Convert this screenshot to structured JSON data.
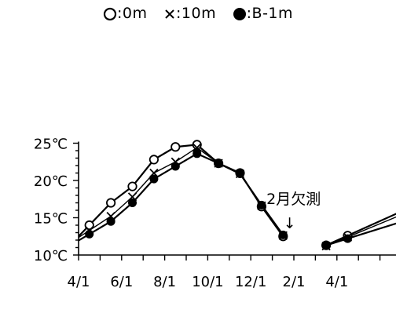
{
  "chart_data": {
    "type": "line",
    "title": "",
    "xlabel": "",
    "ylabel": "",
    "x_tick_labels": [
      "4/1",
      "6/1",
      "8/1",
      "10/1",
      "12/1",
      "2/1",
      "4/1"
    ],
    "y_tick_labels": [
      "10℃",
      "15℃",
      "20℃",
      "25℃"
    ],
    "ylim": [
      10,
      25
    ],
    "grid": false,
    "legend": {
      "placement": "top",
      "entries": [
        {
          "marker": "open-circle",
          "label": ":0m"
        },
        {
          "marker": "cross",
          "label": ":10m"
        },
        {
          "marker": "filled-circle",
          "label": ":B-1m"
        }
      ]
    },
    "annotation": {
      "text": "2月欠測",
      "arrow": "↓",
      "month_index": 10.5
    },
    "series": [
      {
        "name": ":0m",
        "marker": "open-circle",
        "segments": [
          [
            [
              0,
              14.0
            ],
            [
              1,
              17.0
            ],
            [
              2,
              19.2
            ],
            [
              3,
              22.8
            ],
            [
              4,
              24.5
            ],
            [
              5,
              24.8
            ],
            [
              6,
              22.3
            ],
            [
              7,
              21.0
            ],
            [
              8,
              16.5
            ],
            [
              9,
              12.5
            ]
          ],
          [
            [
              11,
              11.3
            ],
            [
              12,
              12.6
            ]
          ]
        ]
      },
      {
        "name": ":10m",
        "marker": "cross",
        "segments": [
          [
            [
              0,
              13.3
            ],
            [
              1,
              15.2
            ],
            [
              2,
              17.8
            ],
            [
              3,
              21.0
            ],
            [
              4,
              22.5
            ],
            [
              5,
              24.4
            ],
            [
              6,
              22.3
            ],
            [
              7,
              20.9
            ],
            [
              8,
              16.6
            ],
            [
              9,
              12.6
            ]
          ],
          [
            [
              11,
              11.2
            ],
            [
              12,
              12.4
            ]
          ]
        ]
      },
      {
        "name": ":B-1m",
        "marker": "filled-circle",
        "segments": [
          [
            [
              0,
              12.8
            ],
            [
              1,
              14.5
            ],
            [
              2,
              17.0
            ],
            [
              3,
              20.2
            ],
            [
              4,
              21.9
            ],
            [
              5,
              23.6
            ],
            [
              6,
              22.3
            ],
            [
              7,
              20.9
            ],
            [
              8,
              16.7
            ],
            [
              9,
              12.7
            ]
          ],
          [
            [
              11,
              11.3
            ],
            [
              12,
              12.2
            ]
          ]
        ]
      }
    ]
  }
}
